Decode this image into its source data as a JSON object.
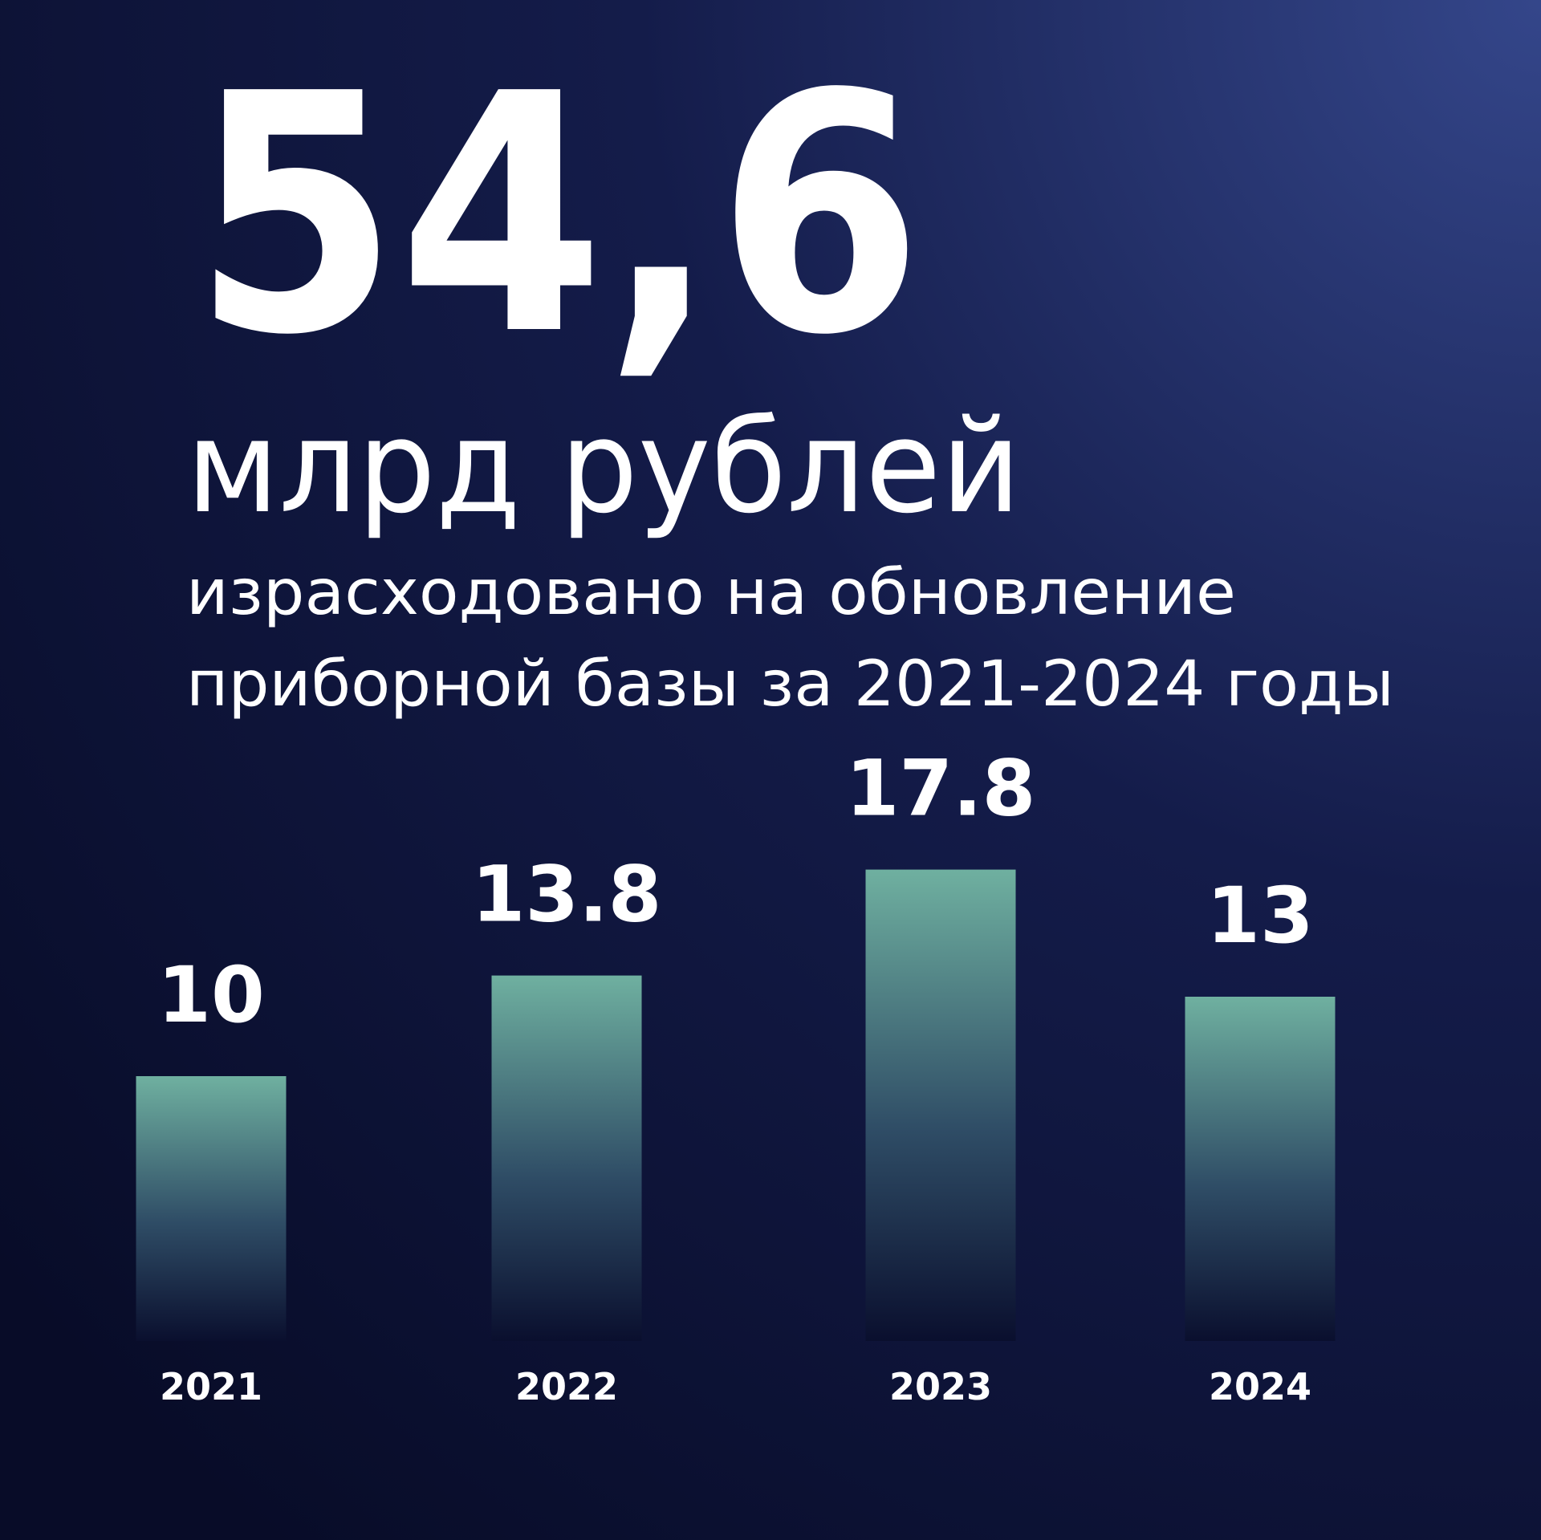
{
  "chart_data": {
    "type": "bar",
    "title": "54,6",
    "subtitle": "млрд рублей",
    "description_lines": [
      "израсходовано на обновление",
      "приборной базы за 2021-2024 годы"
    ],
    "categories": [
      "2021",
      "2022",
      "2023",
      "2024"
    ],
    "values": [
      10,
      13.8,
      17.8,
      13
    ],
    "color": "#6fb0a0"
  }
}
